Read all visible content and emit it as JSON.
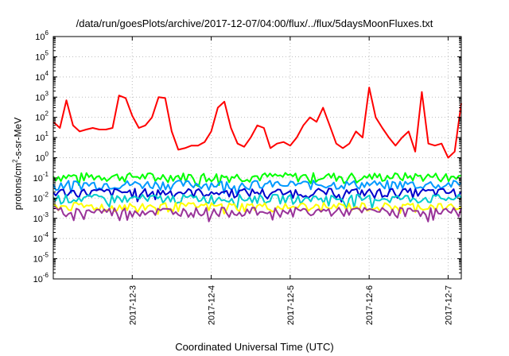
{
  "chart_data": {
    "type": "line",
    "title": "/data/run/goesPlots/archive/2017-12-07/04:00/flux/../flux/5daysMoonFluxes.txt",
    "xlabel": "Coordinated Universal Time (UTC)",
    "ylabel": {
      "prefix": "protons/cm",
      "sup": "2",
      "suffix": "-s-sr-MeV"
    },
    "y_scale": "log",
    "ylim": [
      "1e-6",
      "1e6"
    ],
    "y_ticks": [
      {
        "base": "10",
        "exp": "-6"
      },
      {
        "base": "10",
        "exp": "-5"
      },
      {
        "base": "10",
        "exp": "-4"
      },
      {
        "base": "10",
        "exp": "-3"
      },
      {
        "base": "10",
        "exp": "-2"
      },
      {
        "base": "10",
        "exp": "-1"
      },
      {
        "base": "10",
        "exp": "0"
      },
      {
        "base": "10",
        "exp": "1"
      },
      {
        "base": "10",
        "exp": "2"
      },
      {
        "base": "10",
        "exp": "3"
      },
      {
        "base": "10",
        "exp": "4"
      },
      {
        "base": "10",
        "exp": "5"
      },
      {
        "base": "10",
        "exp": "6"
      }
    ],
    "xlim": [
      "2017-12-02T00:00",
      "2017-12-07T04:00"
    ],
    "x_ticks": [
      "2017-12-3",
      "2017-12-4",
      "2017-12-5",
      "2017-12-6",
      "2017-12-7"
    ],
    "grid": true,
    "series": [
      {
        "color": "#ff0000",
        "x": [
          "2017-12-02T00:00",
          "2017-12-02T02:00",
          "2017-12-02T04:00",
          "2017-12-02T06:00",
          "2017-12-02T08:00",
          "2017-12-02T10:00",
          "2017-12-02T12:00",
          "2017-12-02T14:00",
          "2017-12-02T16:00",
          "2017-12-02T18:00",
          "2017-12-02T20:00",
          "2017-12-02T22:00",
          "2017-12-03T00:00",
          "2017-12-03T02:00",
          "2017-12-03T04:00",
          "2017-12-03T06:00",
          "2017-12-03T08:00",
          "2017-12-03T10:00",
          "2017-12-03T12:00",
          "2017-12-03T14:00",
          "2017-12-03T16:00",
          "2017-12-03T18:00",
          "2017-12-03T20:00",
          "2017-12-03T22:00",
          "2017-12-04T00:00",
          "2017-12-04T02:00",
          "2017-12-04T04:00",
          "2017-12-04T06:00",
          "2017-12-04T08:00",
          "2017-12-04T10:00",
          "2017-12-04T12:00",
          "2017-12-04T14:00",
          "2017-12-04T16:00",
          "2017-12-04T18:00",
          "2017-12-04T20:00",
          "2017-12-04T22:00",
          "2017-12-05T00:00",
          "2017-12-05T02:00",
          "2017-12-05T04:00",
          "2017-12-05T06:00",
          "2017-12-05T08:00",
          "2017-12-05T10:00",
          "2017-12-05T12:00",
          "2017-12-05T14:00",
          "2017-12-05T16:00",
          "2017-12-05T18:00",
          "2017-12-05T20:00",
          "2017-12-05T22:00",
          "2017-12-06T00:00",
          "2017-12-06T02:00",
          "2017-12-06T04:00",
          "2017-12-06T06:00",
          "2017-12-06T08:00",
          "2017-12-06T10:00",
          "2017-12-06T12:00",
          "2017-12-06T14:00",
          "2017-12-06T16:00",
          "2017-12-06T18:00",
          "2017-12-06T20:00",
          "2017-12-06T22:00",
          "2017-12-07T00:00",
          "2017-12-07T02:00",
          "2017-12-07T04:00"
        ],
        "y": [
          60,
          30,
          700,
          40,
          20,
          25,
          30,
          25,
          25,
          30,
          1200,
          900,
          120,
          30,
          40,
          100,
          1000,
          900,
          20,
          2.5,
          3,
          4,
          4,
          6,
          20,
          300,
          600,
          30,
          5,
          3.5,
          10,
          40,
          30,
          3,
          5,
          6,
          4,
          10,
          40,
          100,
          60,
          300,
          40,
          5,
          3,
          5,
          20,
          10,
          3000,
          100,
          30,
          10,
          4,
          10,
          20,
          2,
          1800,
          5,
          4,
          5,
          1,
          2,
          500
        ]
      },
      {
        "color": "#00ff00",
        "baseline": 0.12,
        "x_range": [
          "2017-12-02T00:00",
          "2017-12-07T04:00"
        ]
      },
      {
        "color": "#0099ff",
        "baseline": 0.05,
        "x_range": [
          "2017-12-02T00:00",
          "2017-12-07T04:00"
        ]
      },
      {
        "color": "#0000cc",
        "baseline": 0.02,
        "x_range": [
          "2017-12-02T00:00",
          "2017-12-07T04:00"
        ]
      },
      {
        "color": "#00cccc",
        "baseline": 0.01,
        "x_range": [
          "2017-12-02T00:00",
          "2017-12-07T04:00"
        ]
      },
      {
        "color": "#ffff00",
        "baseline": 0.004,
        "x_range": [
          "2017-12-02T00:00",
          "2017-12-07T04:00"
        ]
      },
      {
        "color": "#993399",
        "baseline": 0.0023,
        "x_range": [
          "2017-12-02T00:00",
          "2017-12-07T04:00"
        ]
      }
    ]
  }
}
